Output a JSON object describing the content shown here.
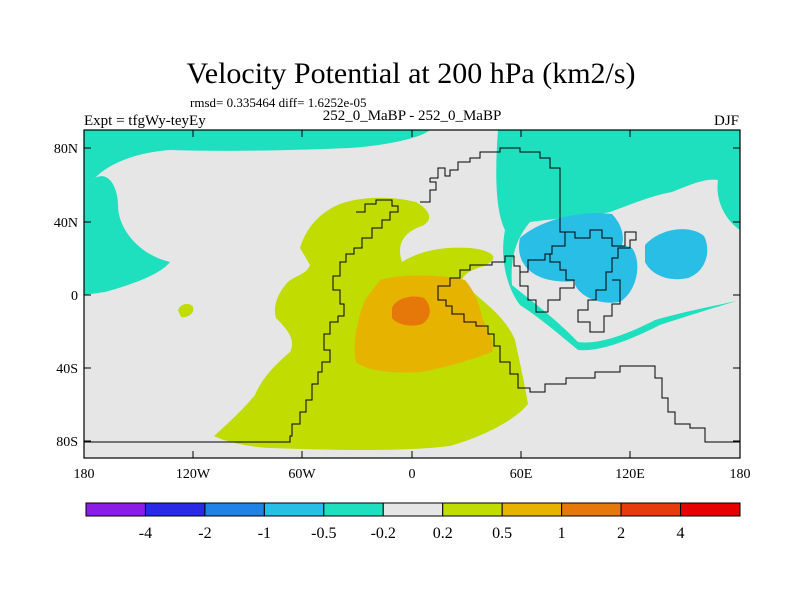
{
  "title": "Velocity Potential at 200 hPa (km2/s)",
  "stats": "rmsd= 0.335464 diff= 1.6252e-05",
  "experiment": "Expt = tfgWy-teyEy",
  "subtitle": "252_0_MaBP - 252_0_MaBP",
  "season": "DJF",
  "lat_ticks": [
    "80N",
    "40N",
    "0",
    "40S",
    "80S"
  ],
  "lon_ticks": [
    "180",
    "120W",
    "60W",
    "0",
    "60E",
    "120E",
    "180"
  ],
  "colorbar": {
    "colors": [
      "#8a1ee6",
      "#2a2ae6",
      "#1e82e6",
      "#28bee6",
      "#1ee0be",
      "#e6e6e6",
      "#c0dc00",
      "#e6b400",
      "#e6780a",
      "#e63c0a",
      "#e60000"
    ],
    "labels": [
      "-4",
      "-2",
      "-1",
      "-0.5",
      "-0.2",
      "0.2",
      "0.5",
      "1",
      "2",
      "4"
    ]
  },
  "map_colors": {
    "neutral": "#e6e6e6",
    "cyan": "#1ee0be",
    "blue": "#28bee6",
    "yellowgreen": "#c0dc00",
    "orange": "#e6b400",
    "darkorange": "#e6780a"
  }
}
